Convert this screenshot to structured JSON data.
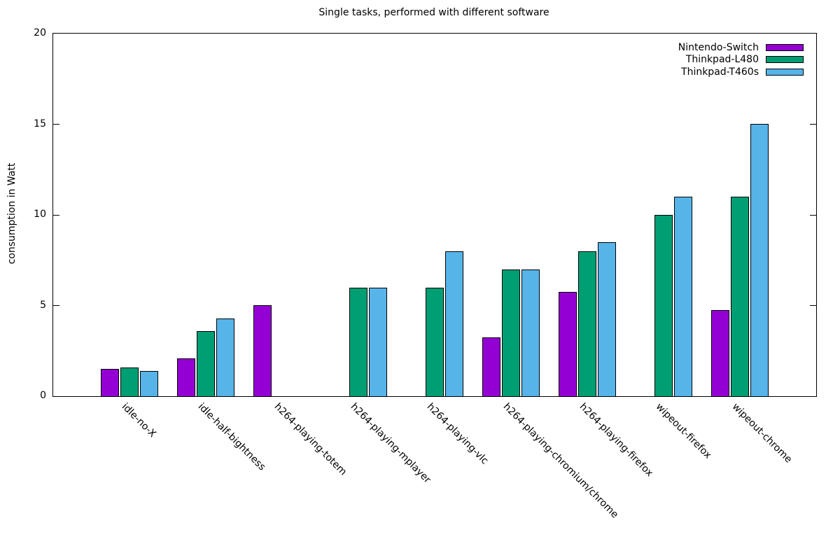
{
  "chart_data": {
    "type": "bar",
    "title": "Single tasks, performed with different software",
    "xlabel": "",
    "ylabel": "consumption in Watt",
    "ylim": [
      0,
      20
    ],
    "yticks": [
      0,
      5,
      10,
      15,
      20
    ],
    "grid": false,
    "legend_position": "top-right-inside",
    "bar_border_color": "#000000",
    "categories": [
      "idle-no-X",
      "idle-half-bightness",
      "h264-playing-totem",
      "h264-playing-mplayer",
      "h264-playing-vlc",
      "h264-playing-chromium/chrome",
      "h264-playing-firefox",
      "wipeout-firefox",
      "wipeout-chrome"
    ],
    "series": [
      {
        "name": "Nintendo-Switch",
        "color": "#9400d3",
        "values": [
          1.5,
          2.1,
          5.0,
          null,
          null,
          3.25,
          5.75,
          null,
          4.75
        ]
      },
      {
        "name": "Thinkpad-L480",
        "color": "#009e73",
        "values": [
          1.6,
          3.6,
          null,
          6.0,
          6.0,
          7.0,
          8.0,
          10.0,
          11.0
        ]
      },
      {
        "name": "Thinkpad-T460s",
        "color": "#56b4e9",
        "values": [
          1.4,
          4.3,
          null,
          6.0,
          8.0,
          7.0,
          8.5,
          11.0,
          15.0
        ]
      }
    ]
  }
}
